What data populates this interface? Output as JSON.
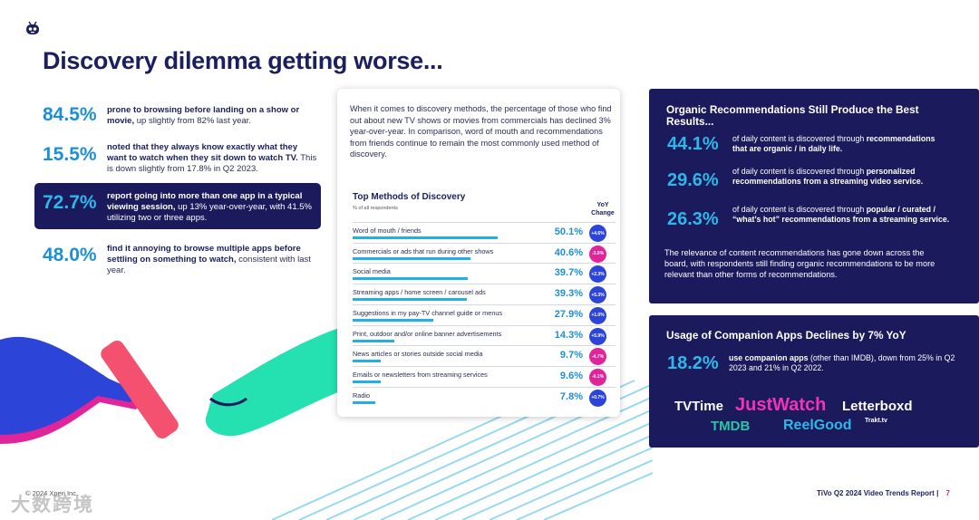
{
  "title": "Discovery dilemma getting worse...",
  "stats": [
    {
      "pct": "84.5%",
      "bold": "prone to browsing before landing on a show or movie,",
      "rest": " up slightly from 82% last year."
    },
    {
      "pct": "15.5%",
      "bold": "noted that they always know exactly what they want to watch when they sit down to watch TV.",
      "rest": " This is down slightly from 17.8% in Q2 2023."
    },
    {
      "pct": "72.7%",
      "bold": "report going into more than one app in a typical viewing session,",
      "rest": " up 13% year-over-year, with 41.5% utilizing two or three apps."
    },
    {
      "pct": "48.0%",
      "bold": "find it annoying to browse multiple apps before settling on something to watch,",
      "rest": " consistent with last year."
    }
  ],
  "card": {
    "intro": "When it comes to discovery methods, the percentage of those who find out about new TV shows or movies from commercials has declined 3% year-over-year. In comparison, word of mouth and recommendations from friends continue to remain the most commonly used method of discovery.",
    "methods_title": "Top Methods of Discovery",
    "methods_sub": "% of all respondents",
    "yoy_label": "YoY Change",
    "methods": [
      {
        "label": "Word of mouth / friends",
        "value": 50.1,
        "value_text": "50.1%",
        "change": "+4.6%",
        "neg": false
      },
      {
        "label": "Commercials or ads that run during other shows",
        "value": 40.6,
        "value_text": "40.6%",
        "change": "-3.0%",
        "neg": true
      },
      {
        "label": "Social media",
        "value": 39.7,
        "value_text": "39.7%",
        "change": "+2.3%",
        "neg": false
      },
      {
        "label": "Streaming apps / home screen / carousel ads",
        "value": 39.3,
        "value_text": "39.3%",
        "change": "+5.3%",
        "neg": false
      },
      {
        "label": "Suggestions in my pay-TV channel guide or menus",
        "value": 27.9,
        "value_text": "27.9%",
        "change": "+1.0%",
        "neg": false
      },
      {
        "label": "Print, outdoor and/or online banner advertisements",
        "value": 14.3,
        "value_text": "14.3%",
        "change": "+5.9%",
        "neg": false
      },
      {
        "label": "News articles or stories outside social media",
        "value": 9.7,
        "value_text": "9.7%",
        "change": "-4.7%",
        "neg": true
      },
      {
        "label": "Emails or newsletters from streaming services",
        "value": 9.6,
        "value_text": "9.6%",
        "change": "-0.1%",
        "neg": true
      },
      {
        "label": "Radio",
        "value": 7.8,
        "value_text": "7.8%",
        "change": "+0.7%",
        "neg": false
      }
    ]
  },
  "organic": {
    "title": "Organic Recommendations Still Produce the Best Results...",
    "items": [
      {
        "pct": "44.1%",
        "pre": "of daily content is discovered through ",
        "bold": "recommendations that are organic / in daily life."
      },
      {
        "pct": "29.6%",
        "pre": "of daily content is discovered through ",
        "bold": "personalized recommendations from a streaming video service."
      },
      {
        "pct": "26.3%",
        "pre": "of daily content is discovered through ",
        "bold": "popular / curated / “what’s hot” recommendations from a streaming service."
      }
    ],
    "note": "The relevance of content recommendations has gone down across the board, with respondents still finding organic recommendations to be more relevant than other forms of recommendations."
  },
  "companion": {
    "title": "Usage of Companion Apps Declines by 7% YoY",
    "pct": "18.2%",
    "bold": "use companion apps",
    "rest": " (other than IMDB), down from 25% in Q2 2023 and 21% in Q2 2022.",
    "brands": [
      "TVTime",
      "JustWatch",
      "Letterboxd",
      "TMDB",
      "ReelGood",
      "Trakt.tv"
    ]
  },
  "footer": {
    "copyright": "© 2024 Xperi Inc.",
    "report": "TiVo Q2 2024 Video Trends Report",
    "separator": "|",
    "page": "7"
  },
  "watermark": "大数跨境",
  "colors": {
    "navy": "#1b1a5c",
    "cyan": "#2eb7e8",
    "pink": "#e0249a",
    "green": "#25c7a4",
    "blue": "#2c45d8"
  }
}
